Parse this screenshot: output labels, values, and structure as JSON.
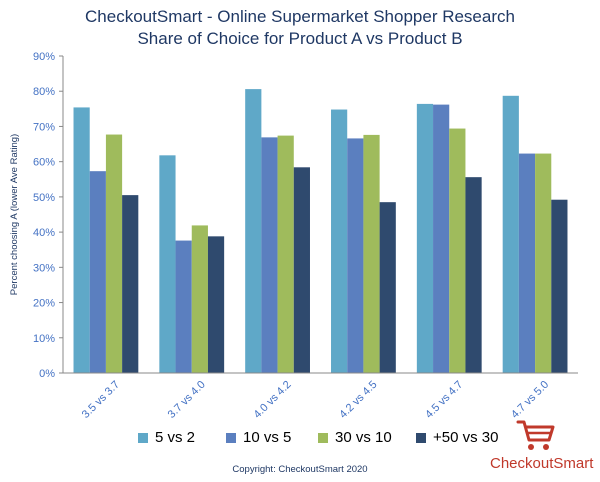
{
  "title_line1": "CheckoutSmart - Online Supermarket Shopper Research",
  "title_line2": "Share of Choice for Product A vs Product B",
  "copyright": "Copyright: CheckoutSmart 2020",
  "logo_text": "CheckoutSmart",
  "colors": {
    "title": "#1f3864",
    "axis_text": "#4472c4",
    "logo": "#c0392b"
  },
  "chart_data": {
    "type": "bar",
    "ylabel": "Percent choosing A (lower Ave Rating)",
    "ylim": [
      0,
      90
    ],
    "ytick_step": 10,
    "ytick_suffix": "%",
    "grid": false,
    "legend_position": "bottom",
    "categories": [
      "3.5 vs 3.7",
      "3.7 vs 4.0",
      "4.0 vs 4.2",
      "4.2 vs 4.5",
      "4.5 vs 4.7",
      "4.7 vs 5.0"
    ],
    "series": [
      {
        "name": "5 vs 2",
        "color": "#5fa8c8",
        "values": [
          75.4,
          61.8,
          80.6,
          74.8,
          76.4,
          78.7
        ]
      },
      {
        "name": "10 vs 5",
        "color": "#5b7fbf",
        "values": [
          57.3,
          37.6,
          66.9,
          66.6,
          76.2,
          62.3
        ]
      },
      {
        "name": "30 vs 10",
        "color": "#9fbb5c",
        "values": [
          67.7,
          41.9,
          67.4,
          67.6,
          69.4,
          62.3
        ]
      },
      {
        "name": "+50 vs 30",
        "color": "#2f4a6e",
        "values": [
          50.5,
          38.8,
          58.4,
          48.5,
          55.6,
          49.2
        ]
      }
    ]
  }
}
